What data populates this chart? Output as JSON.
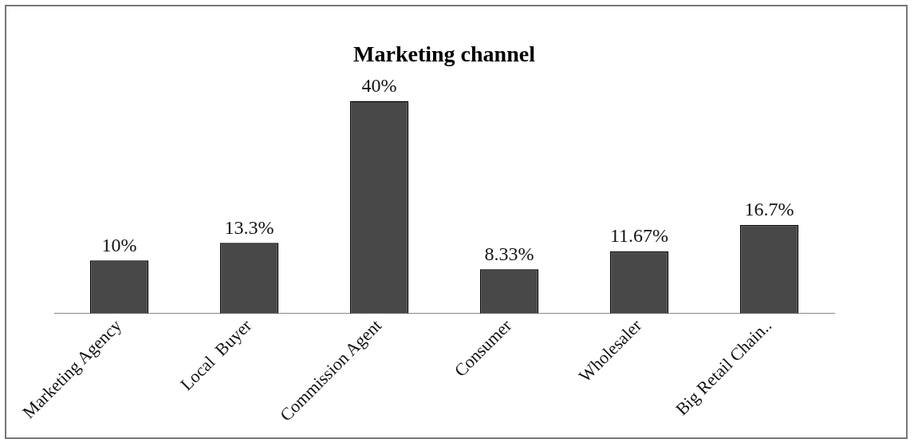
{
  "chart_data": {
    "type": "bar",
    "title": "Marketing channel",
    "categories": [
      "Marketing Agency",
      "Local  Buyer",
      "Commission Agent",
      "Consumer",
      "Wholesaler",
      "Big Retail Chain.."
    ],
    "values": [
      10,
      13.3,
      40,
      8.33,
      11.67,
      16.7
    ],
    "value_labels": [
      "10%",
      "13.3%",
      "40%",
      "8.33%",
      "11.67%",
      "16.7%"
    ],
    "color": "#484848",
    "tick_labels": "x",
    "grid": false,
    "legend": false
  }
}
